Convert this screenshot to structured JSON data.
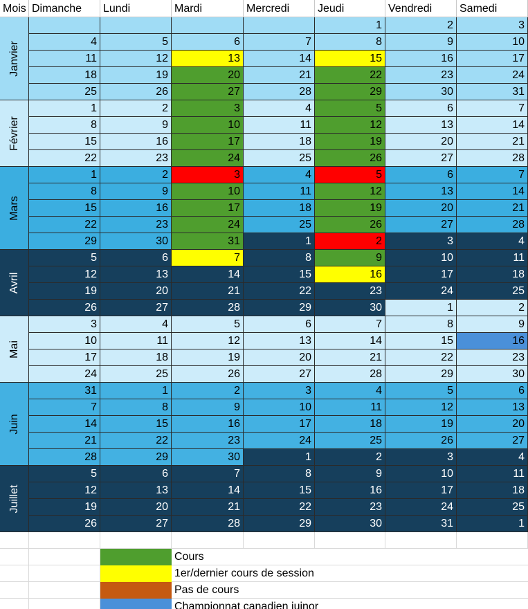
{
  "header": {
    "mois": "Mois",
    "days": [
      "Dimanche",
      "Lundi",
      "Mardi",
      "Mercredi",
      "Jeudi",
      "Vendredi",
      "Samedi"
    ]
  },
  "colors": {
    "janvier": "#a0dcf5",
    "fevrier": "#c9ebfa",
    "mars": "#3baee0",
    "avril": "#163f5c",
    "mai": "#cdecfa",
    "juin": "#43b1e2",
    "juillet": "#163f5c",
    "cours": "#4f9e2e",
    "first_last": "#ffff00",
    "pas_de_cours": "#ff0000",
    "championnat": "#4a90d9",
    "legend_pas_de_cours": "#c55a11"
  },
  "months": [
    {
      "name": "Janvier",
      "key": "janvier",
      "weeks": [
        [
          [
            "",
            "janvier"
          ],
          [
            "",
            "janvier"
          ],
          [
            "",
            "janvier"
          ],
          [
            "",
            "janvier"
          ],
          [
            "1",
            "janvier"
          ],
          [
            "2",
            "janvier"
          ],
          [
            "3",
            "janvier"
          ]
        ],
        [
          [
            "4",
            "janvier"
          ],
          [
            "5",
            "janvier"
          ],
          [
            "6",
            "janvier"
          ],
          [
            "7",
            "janvier"
          ],
          [
            "8",
            "janvier"
          ],
          [
            "9",
            "janvier"
          ],
          [
            "10",
            "janvier"
          ]
        ],
        [
          [
            "11",
            "janvier"
          ],
          [
            "12",
            "janvier"
          ],
          [
            "13",
            "first_last"
          ],
          [
            "14",
            "janvier"
          ],
          [
            "15",
            "first_last"
          ],
          [
            "16",
            "janvier"
          ],
          [
            "17",
            "janvier"
          ]
        ],
        [
          [
            "18",
            "janvier"
          ],
          [
            "19",
            "janvier"
          ],
          [
            "20",
            "cours"
          ],
          [
            "21",
            "janvier"
          ],
          [
            "22",
            "cours"
          ],
          [
            "23",
            "janvier"
          ],
          [
            "24",
            "janvier"
          ]
        ],
        [
          [
            "25",
            "janvier"
          ],
          [
            "26",
            "janvier"
          ],
          [
            "27",
            "cours"
          ],
          [
            "28",
            "janvier"
          ],
          [
            "29",
            "cours"
          ],
          [
            "30",
            "janvier"
          ],
          [
            "31",
            "janvier"
          ]
        ]
      ]
    },
    {
      "name": "Février",
      "key": "fevrier",
      "weeks": [
        [
          [
            "1",
            "fevrier"
          ],
          [
            "2",
            "fevrier"
          ],
          [
            "3",
            "cours"
          ],
          [
            "4",
            "fevrier"
          ],
          [
            "5",
            "cours"
          ],
          [
            "6",
            "fevrier"
          ],
          [
            "7",
            "fevrier"
          ]
        ],
        [
          [
            "8",
            "fevrier"
          ],
          [
            "9",
            "fevrier"
          ],
          [
            "10",
            "cours"
          ],
          [
            "11",
            "fevrier"
          ],
          [
            "12",
            "cours"
          ],
          [
            "13",
            "fevrier"
          ],
          [
            "14",
            "fevrier"
          ]
        ],
        [
          [
            "15",
            "fevrier"
          ],
          [
            "16",
            "fevrier"
          ],
          [
            "17",
            "cours"
          ],
          [
            "18",
            "fevrier"
          ],
          [
            "19",
            "cours"
          ],
          [
            "20",
            "fevrier"
          ],
          [
            "21",
            "fevrier"
          ]
        ],
        [
          [
            "22",
            "fevrier"
          ],
          [
            "23",
            "fevrier"
          ],
          [
            "24",
            "cours"
          ],
          [
            "25",
            "fevrier"
          ],
          [
            "26",
            "cours"
          ],
          [
            "27",
            "fevrier"
          ],
          [
            "28",
            "fevrier"
          ]
        ]
      ]
    },
    {
      "name": "Mars",
      "key": "mars",
      "weeks": [
        [
          [
            "1",
            "mars"
          ],
          [
            "2",
            "mars"
          ],
          [
            "3",
            "pas_de_cours"
          ],
          [
            "4",
            "mars"
          ],
          [
            "5",
            "pas_de_cours"
          ],
          [
            "6",
            "mars"
          ],
          [
            "7",
            "mars"
          ]
        ],
        [
          [
            "8",
            "mars"
          ],
          [
            "9",
            "mars"
          ],
          [
            "10",
            "cours"
          ],
          [
            "11",
            "mars"
          ],
          [
            "12",
            "cours"
          ],
          [
            "13",
            "mars"
          ],
          [
            "14",
            "mars"
          ]
        ],
        [
          [
            "15",
            "mars"
          ],
          [
            "16",
            "mars"
          ],
          [
            "17",
            "cours"
          ],
          [
            "18",
            "mars"
          ],
          [
            "19",
            "cours"
          ],
          [
            "20",
            "mars"
          ],
          [
            "21",
            "mars"
          ]
        ],
        [
          [
            "22",
            "mars"
          ],
          [
            "23",
            "mars"
          ],
          [
            "24",
            "cours"
          ],
          [
            "25",
            "mars"
          ],
          [
            "26",
            "cours"
          ],
          [
            "27",
            "mars"
          ],
          [
            "28",
            "mars"
          ]
        ],
        [
          [
            "29",
            "mars"
          ],
          [
            "30",
            "mars"
          ],
          [
            "31",
            "cours"
          ],
          [
            "1",
            "avril"
          ],
          [
            "2",
            "pas_de_cours"
          ],
          [
            "3",
            "avril"
          ],
          [
            "4",
            "avril"
          ]
        ]
      ]
    },
    {
      "name": "Avril",
      "key": "avril",
      "weeks": [
        [
          [
            "5",
            "avril"
          ],
          [
            "6",
            "avril"
          ],
          [
            "7",
            "first_last"
          ],
          [
            "8",
            "avril"
          ],
          [
            "9",
            "cours"
          ],
          [
            "10",
            "avril"
          ],
          [
            "11",
            "avril"
          ]
        ],
        [
          [
            "12",
            "avril"
          ],
          [
            "13",
            "avril"
          ],
          [
            "14",
            "avril"
          ],
          [
            "15",
            "avril"
          ],
          [
            "16",
            "first_last"
          ],
          [
            "17",
            "avril"
          ],
          [
            "18",
            "avril"
          ]
        ],
        [
          [
            "19",
            "avril"
          ],
          [
            "20",
            "avril"
          ],
          [
            "21",
            "avril"
          ],
          [
            "22",
            "avril"
          ],
          [
            "23",
            "avril"
          ],
          [
            "24",
            "avril"
          ],
          [
            "25",
            "avril"
          ]
        ],
        [
          [
            "26",
            "avril"
          ],
          [
            "27",
            "avril"
          ],
          [
            "28",
            "avril"
          ],
          [
            "29",
            "avril"
          ],
          [
            "30",
            "avril"
          ],
          [
            "1",
            "mai"
          ],
          [
            "2",
            "mai"
          ]
        ]
      ]
    },
    {
      "name": "Mai",
      "key": "mai",
      "weeks": [
        [
          [
            "3",
            "mai"
          ],
          [
            "4",
            "mai"
          ],
          [
            "5",
            "mai"
          ],
          [
            "6",
            "mai"
          ],
          [
            "7",
            "mai"
          ],
          [
            "8",
            "mai"
          ],
          [
            "9",
            "mai"
          ]
        ],
        [
          [
            "10",
            "mai"
          ],
          [
            "11",
            "mai"
          ],
          [
            "12",
            "mai"
          ],
          [
            "13",
            "mai"
          ],
          [
            "14",
            "mai"
          ],
          [
            "15",
            "mai"
          ],
          [
            "16",
            "championnat"
          ]
        ],
        [
          [
            "17",
            "mai"
          ],
          [
            "18",
            "mai"
          ],
          [
            "19",
            "mai"
          ],
          [
            "20",
            "mai"
          ],
          [
            "21",
            "mai"
          ],
          [
            "22",
            "mai"
          ],
          [
            "23",
            "mai"
          ]
        ],
        [
          [
            "24",
            "mai"
          ],
          [
            "25",
            "mai"
          ],
          [
            "26",
            "mai"
          ],
          [
            "27",
            "mai"
          ],
          [
            "28",
            "mai"
          ],
          [
            "29",
            "mai"
          ],
          [
            "30",
            "mai"
          ]
        ]
      ]
    },
    {
      "name": "Juin",
      "key": "juin",
      "weeks": [
        [
          [
            "31",
            "juin"
          ],
          [
            "1",
            "juin"
          ],
          [
            "2",
            "juin"
          ],
          [
            "3",
            "juin"
          ],
          [
            "4",
            "juin"
          ],
          [
            "5",
            "juin"
          ],
          [
            "6",
            "juin"
          ]
        ],
        [
          [
            "7",
            "juin"
          ],
          [
            "8",
            "juin"
          ],
          [
            "9",
            "juin"
          ],
          [
            "10",
            "juin"
          ],
          [
            "11",
            "juin"
          ],
          [
            "12",
            "juin"
          ],
          [
            "13",
            "juin"
          ]
        ],
        [
          [
            "14",
            "juin"
          ],
          [
            "15",
            "juin"
          ],
          [
            "16",
            "juin"
          ],
          [
            "17",
            "juin"
          ],
          [
            "18",
            "juin"
          ],
          [
            "19",
            "juin"
          ],
          [
            "20",
            "juin"
          ]
        ],
        [
          [
            "21",
            "juin"
          ],
          [
            "22",
            "juin"
          ],
          [
            "23",
            "juin"
          ],
          [
            "24",
            "juin"
          ],
          [
            "25",
            "juin"
          ],
          [
            "26",
            "juin"
          ],
          [
            "27",
            "juin"
          ]
        ],
        [
          [
            "28",
            "juin"
          ],
          [
            "29",
            "juin"
          ],
          [
            "30",
            "juin"
          ],
          [
            "1",
            "juillet"
          ],
          [
            "2",
            "juillet"
          ],
          [
            "3",
            "juillet"
          ],
          [
            "4",
            "juillet"
          ]
        ]
      ]
    },
    {
      "name": "Juillet",
      "key": "juillet",
      "weeks": [
        [
          [
            "5",
            "juillet"
          ],
          [
            "6",
            "juillet"
          ],
          [
            "7",
            "juillet"
          ],
          [
            "8",
            "juillet"
          ],
          [
            "9",
            "juillet"
          ],
          [
            "10",
            "juillet"
          ],
          [
            "11",
            "juillet"
          ]
        ],
        [
          [
            "12",
            "juillet"
          ],
          [
            "13",
            "juillet"
          ],
          [
            "14",
            "juillet"
          ],
          [
            "15",
            "juillet"
          ],
          [
            "16",
            "juillet"
          ],
          [
            "17",
            "juillet"
          ],
          [
            "18",
            "juillet"
          ]
        ],
        [
          [
            "19",
            "juillet"
          ],
          [
            "20",
            "juillet"
          ],
          [
            "21",
            "juillet"
          ],
          [
            "22",
            "juillet"
          ],
          [
            "23",
            "juillet"
          ],
          [
            "24",
            "juillet"
          ],
          [
            "25",
            "juillet"
          ]
        ],
        [
          [
            "26",
            "juillet"
          ],
          [
            "27",
            "juillet"
          ],
          [
            "28",
            "juillet"
          ],
          [
            "29",
            "juillet"
          ],
          [
            "30",
            "juillet"
          ],
          [
            "31",
            "juillet"
          ],
          [
            "1",
            "juillet"
          ]
        ]
      ]
    }
  ],
  "legend": [
    {
      "label": "Cours",
      "color_key": "cours"
    },
    {
      "label": "1er/dernier cours de session",
      "color_key": "first_last"
    },
    {
      "label": "Pas de cours",
      "color_key": "legend_pas_de_cours"
    },
    {
      "label": "Championnat canadien juinor",
      "color_key": "championnat"
    }
  ]
}
